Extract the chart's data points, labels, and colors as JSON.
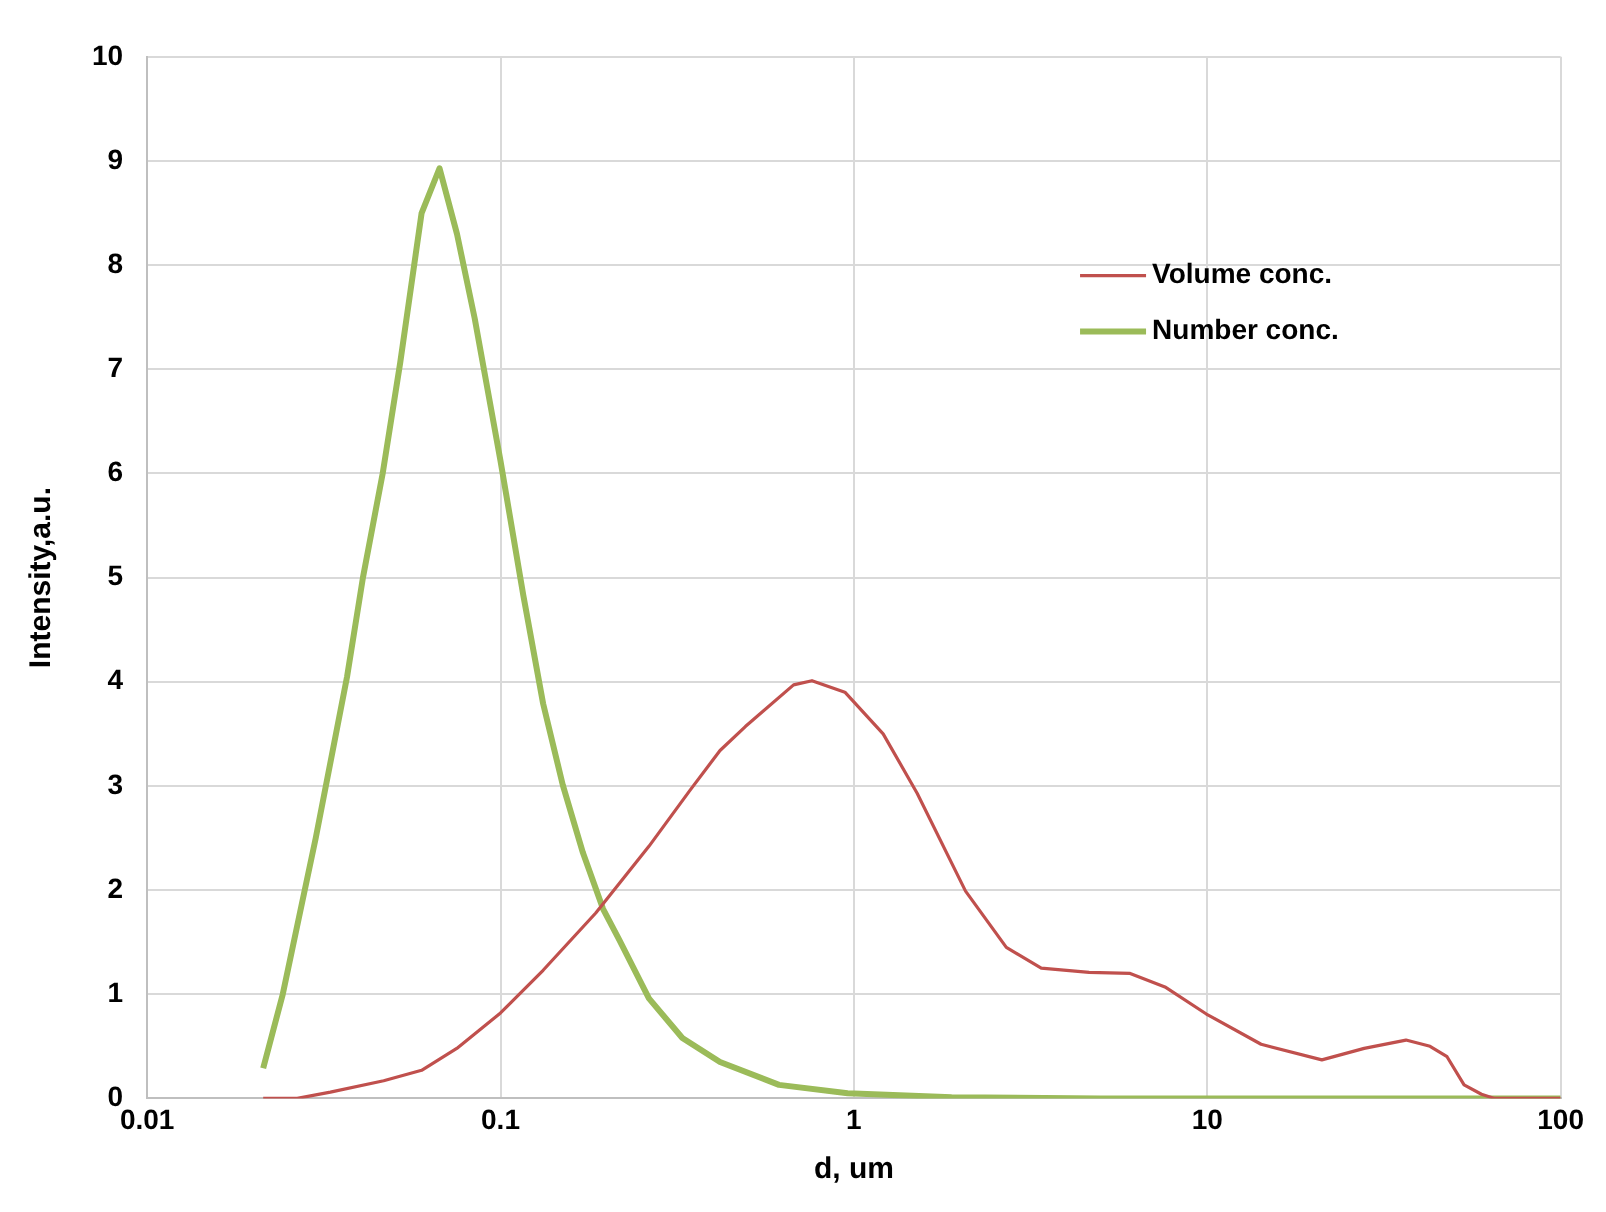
{
  "chart_data": {
    "type": "line",
    "xlabel": "d, um",
    "ylabel": "Intensity,a.u.",
    "log": "x",
    "xlim": [
      0.01,
      100
    ],
    "xticks": [
      0.01,
      0.1,
      1,
      10,
      100
    ],
    "ylim": [
      0,
      10
    ],
    "yticks": [
      0,
      1,
      2,
      3,
      4,
      5,
      6,
      7,
      8,
      9,
      10
    ],
    "grid": true,
    "legend": "top right",
    "marker": "none",
    "line_style": "solid",
    "series": [
      {
        "name": "Volume conc.",
        "color": "#c0504d",
        "x": [
          0.0213,
          0.0266,
          0.033,
          0.0467,
          0.0598,
          0.0752,
          0.1,
          0.132,
          0.186,
          0.263,
          0.344,
          0.418,
          0.493,
          0.675,
          0.761,
          0.943,
          1.21,
          1.51,
          2.07,
          2.7,
          3.39,
          4.63,
          6.05,
          7.59,
          9.94,
          14.2,
          21.1,
          27.8,
          36.5,
          42.7,
          47.7,
          53.3,
          59.7,
          65,
          100
        ],
        "values": [
          0,
          0,
          0.06,
          0.17,
          0.27,
          0.48,
          0.82,
          1.23,
          1.78,
          2.42,
          2.96,
          3.34,
          3.57,
          3.97,
          4.01,
          3.9,
          3.5,
          2.93,
          1.99,
          1.45,
          1.25,
          1.21,
          1.2,
          1.07,
          0.81,
          0.52,
          0.37,
          0.48,
          0.56,
          0.5,
          0.4,
          0.13,
          0.04,
          0,
          0
        ]
      },
      {
        "name": "Number conc.",
        "color": "#9bbb59",
        "x": [
          0.0213,
          0.0242,
          0.03,
          0.0368,
          0.0408,
          0.0464,
          0.052,
          0.0598,
          0.0672,
          0.0753,
          0.0845,
          0.1,
          0.116,
          0.132,
          0.15,
          0.171,
          0.195,
          0.217,
          0.263,
          0.327,
          0.418,
          0.614,
          0.96,
          1.89,
          5,
          20,
          100
        ],
        "values": [
          0.29,
          1,
          2.5,
          4.05,
          5,
          6,
          7.06,
          8.5,
          8.93,
          8.3,
          7.49,
          6.12,
          4.83,
          3.79,
          3.01,
          2.36,
          1.82,
          1.52,
          0.96,
          0.58,
          0.35,
          0.13,
          0.05,
          0.01,
          0,
          0,
          0
        ]
      }
    ]
  }
}
